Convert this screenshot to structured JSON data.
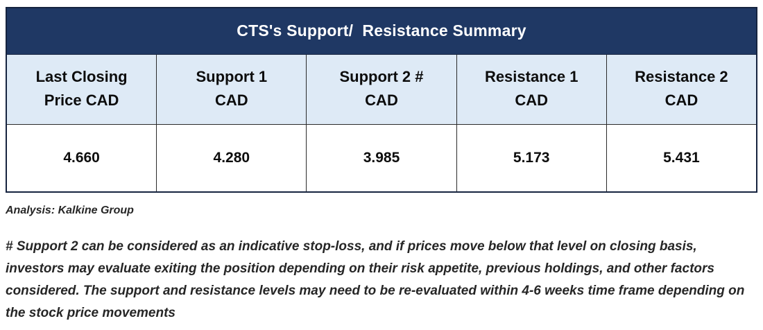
{
  "title": "CTS's Support/  Resistance Summary",
  "table": {
    "headers": [
      {
        "line1": "Last Closing",
        "line2": "Price CAD"
      },
      {
        "line1": "Support 1",
        "line2": "CAD"
      },
      {
        "line1": "Support 2 #",
        "line2": "CAD"
      },
      {
        "line1": "Resistance 1",
        "line2": "CAD"
      },
      {
        "line1": "Resistance 2",
        "line2": "CAD"
      }
    ],
    "values": [
      "4.660",
      "4.280",
      "3.985",
      "5.173",
      "5.431"
    ]
  },
  "source": "Analysis: Kalkine Group",
  "footnote": "# Support 2 can be considered as an indicative stop-loss, and if prices move below that level on closing basis, investors may evaluate exiting the position depending on their risk appetite, previous holdings, and other factors considered. The support and resistance levels may need to be re-evaluated within 4-6 weeks time frame depending on the stock price movements",
  "colors": {
    "title_bg": "#1F3864",
    "title_text": "#FFFFFF",
    "header_bg": "#DEEAF6",
    "border": "#15233F",
    "body_text": "#0D0D0D",
    "note_text": "#262626"
  },
  "chart_data": {
    "type": "table",
    "title": "CTS's Support/ Resistance Summary",
    "columns": [
      "Last Closing Price CAD",
      "Support 1 CAD",
      "Support 2 # CAD",
      "Resistance 1 CAD",
      "Resistance 2 CAD"
    ],
    "rows": [
      [
        "4.660",
        "4.280",
        "3.985",
        "5.173",
        "5.431"
      ]
    ],
    "source": "Analysis: Kalkine Group"
  }
}
